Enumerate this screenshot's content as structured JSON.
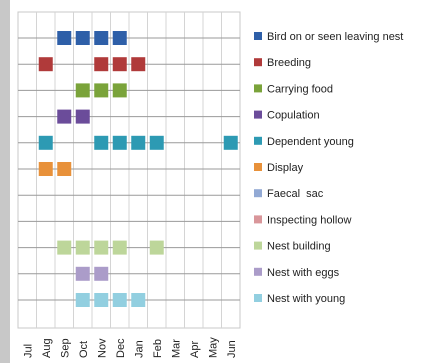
{
  "chart_data": {
    "type": "scatter",
    "title": "",
    "xlabel": "",
    "ylabel": "",
    "x_categories": [
      "Jul",
      "Aug",
      "Sep",
      "Oct",
      "Nov",
      "Dec",
      "Jan",
      "Feb",
      "Mar",
      "Apr",
      "May",
      "Jun"
    ],
    "grid": true,
    "legend_position": "right",
    "series": [
      {
        "name": "Bird on or seen leaving nest",
        "color": "#2e5fa8",
        "months": [
          "Sep",
          "Oct",
          "Nov",
          "Dec"
        ]
      },
      {
        "name": "Breeding",
        "color": "#b03a3a",
        "months": [
          "Aug",
          "Nov",
          "Dec",
          "Jan"
        ]
      },
      {
        "name": "Carrying food",
        "color": "#7aa33a",
        "months": [
          "Oct",
          "Nov",
          "Dec"
        ]
      },
      {
        "name": "Copulation",
        "color": "#6b4c9a",
        "months": [
          "Sep",
          "Oct"
        ]
      },
      {
        "name": "Dependent young",
        "color": "#2d9ab3",
        "months": [
          "Aug",
          "Nov",
          "Dec",
          "Jan",
          "Feb",
          "Jun"
        ]
      },
      {
        "name": "Display",
        "color": "#e8913a",
        "months": [
          "Aug",
          "Sep"
        ]
      },
      {
        "name": "Faecal  sac",
        "color": "#92a9d4",
        "months": []
      },
      {
        "name": "Inspecting hollow",
        "color": "#d9969a",
        "months": []
      },
      {
        "name": "Nest building",
        "color": "#bdd69a",
        "months": [
          "Sep",
          "Oct",
          "Nov",
          "Dec",
          "Feb"
        ]
      },
      {
        "name": "Nest with eggs",
        "color": "#ab9cc9",
        "months": [
          "Oct",
          "Nov"
        ]
      },
      {
        "name": "Nest with young",
        "color": "#92cfe0",
        "months": [
          "Oct",
          "Nov",
          "Dec",
          "Jan"
        ]
      }
    ]
  }
}
